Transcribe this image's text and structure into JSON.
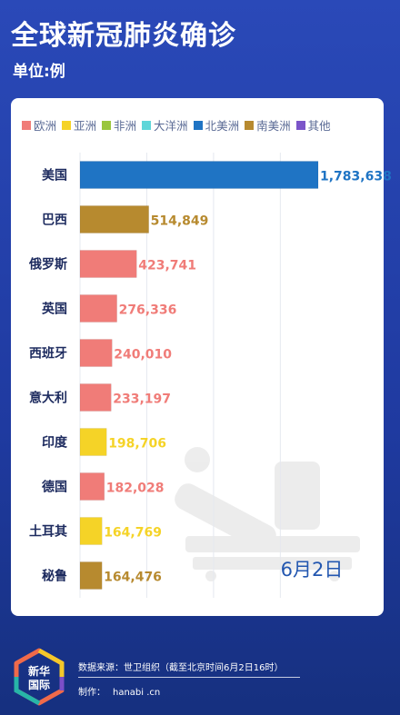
{
  "header": {
    "title": "全球新冠肺炎确诊",
    "unit": "单位:例"
  },
  "legend": [
    {
      "name": "欧洲",
      "color": "#f07c78"
    },
    {
      "name": "亚洲",
      "color": "#f5d327"
    },
    {
      "name": "非洲",
      "color": "#9ac63e"
    },
    {
      "name": "大洋洲",
      "color": "#5fd6d9"
    },
    {
      "name": "北美洲",
      "color": "#1f74c4"
    },
    {
      "name": "南美洲",
      "color": "#b78a2f"
    },
    {
      "name": "其他",
      "color": "#7b55c9"
    }
  ],
  "date_label": "6月2日",
  "chart_data": {
    "type": "bar",
    "orientation": "horizontal",
    "categories": [
      "美国",
      "巴西",
      "俄罗斯",
      "英国",
      "西班牙",
      "意大利",
      "印度",
      "德国",
      "土耳其",
      "秘鲁"
    ],
    "values": [
      1783638,
      514849,
      423741,
      276336,
      240010,
      233197,
      198706,
      182028,
      164769,
      164476
    ],
    "value_labels": [
      "1,783,638",
      "514,849",
      "423,741",
      "276,336",
      "240,010",
      "233,197",
      "198,706",
      "182,028",
      "164,769",
      "164,476"
    ],
    "regions": [
      "北美洲",
      "南美洲",
      "欧洲",
      "欧洲",
      "欧洲",
      "欧洲",
      "亚洲",
      "欧洲",
      "亚洲",
      "南美洲"
    ],
    "legend_placement": "top",
    "grid": true
  },
  "footer": {
    "source": "数据来源：世卫组织（截至北京时间6月2日16时）",
    "maker_label": "制作：",
    "maker": "hanabi .cn",
    "logo_text_1": "新华",
    "logo_text_2": "国际"
  }
}
